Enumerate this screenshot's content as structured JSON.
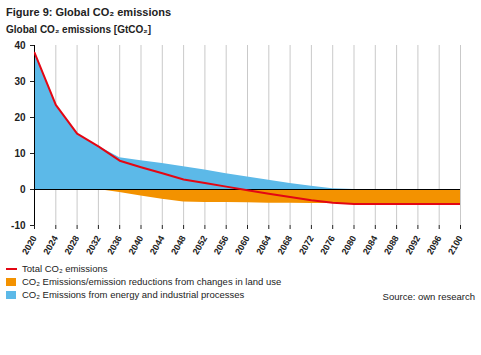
{
  "chart_data": {
    "type": "area",
    "title": "Figure 9: Global CO₂ emissions",
    "y_label": "Global CO₂ emissions [GtCO₂]",
    "source": "Source: own research",
    "x": [
      2020,
      2024,
      2028,
      2032,
      2036,
      2040,
      2044,
      2048,
      2052,
      2056,
      2060,
      2064,
      2068,
      2072,
      2076,
      2080,
      2084,
      2088,
      2092,
      2096,
      2100
    ],
    "series": [
      {
        "name": "Total CO₂ emissions",
        "type": "line",
        "color": "#e30613",
        "values": [
          38,
          23.5,
          15.5,
          12,
          8.0,
          6.2,
          4.5,
          2.8,
          1.8,
          0.8,
          -0.2,
          -1.2,
          -2.1,
          -3.0,
          -3.7,
          -4.0,
          -4,
          -4,
          -4,
          -4,
          -4
        ]
      },
      {
        "name": "CO₂ Emissions/emission reductions from changes in land use",
        "type": "area",
        "color": "#f39200",
        "values": [
          0,
          0,
          0,
          0,
          -0.8,
          -1.8,
          -2.7,
          -3.5,
          -3.6,
          -3.6,
          -3.7,
          -3.8,
          -3.8,
          -3.9,
          -3.9,
          -4.0,
          -4,
          -4,
          -4,
          -4,
          -4
        ]
      },
      {
        "name": "CO₂ Emissions from energy and industrial processes",
        "type": "area",
        "color": "#5cb9e8",
        "values": [
          38,
          23.5,
          15.5,
          12,
          8.8,
          8.0,
          7.2,
          6.3,
          5.4,
          4.4,
          3.5,
          2.6,
          1.7,
          0.9,
          0.2,
          0,
          0,
          0,
          0,
          0,
          0
        ]
      }
    ],
    "xlim": [
      2020,
      2100
    ],
    "xticks": [
      2020,
      2024,
      2028,
      2032,
      2036,
      2040,
      2044,
      2048,
      2052,
      2056,
      2060,
      2064,
      2068,
      2072,
      2076,
      2080,
      2084,
      2088,
      2092,
      2096,
      2100
    ],
    "ylim": [
      -10,
      40
    ],
    "yticks": [
      -10,
      0,
      10,
      20,
      30,
      40
    ],
    "grid": "x",
    "legend": "bottom"
  }
}
